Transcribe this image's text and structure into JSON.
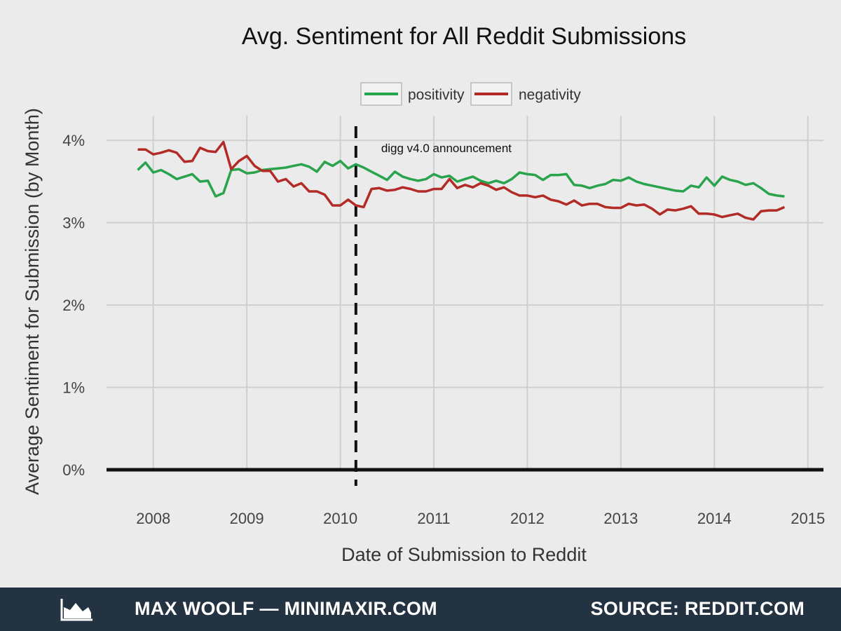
{
  "footer": {
    "credit": "MAX WOOLF — MINIMAXIR.COM",
    "source": "SOURCE: REDDIT.COM",
    "logo_icon": "area-chart-icon"
  },
  "chart_data": {
    "type": "line",
    "title": "Avg. Sentiment for All Reddit Submissions",
    "xlabel": "Date of Submission to Reddit",
    "ylabel": "Average Sentiment for Submission (by Month)",
    "x_ticks": [
      "2008",
      "2009",
      "2010",
      "2011",
      "2012",
      "2013",
      "2014",
      "2015"
    ],
    "y_ticks": [
      "0%",
      "1%",
      "2%",
      "3%",
      "4%"
    ],
    "ylim": [
      0,
      4.3
    ],
    "xlim": [
      "2007-07",
      "2015-03"
    ],
    "grid": true,
    "legend_position": "top",
    "annotation": {
      "label": "digg v4.0 announcement",
      "x": "2010-03",
      "style": "dashed-vertical-line"
    },
    "x": [
      "2007-11",
      "2007-12",
      "2008-01",
      "2008-02",
      "2008-03",
      "2008-04",
      "2008-05",
      "2008-06",
      "2008-07",
      "2008-08",
      "2008-09",
      "2008-10",
      "2008-11",
      "2008-12",
      "2009-01",
      "2009-02",
      "2009-03",
      "2009-04",
      "2009-05",
      "2009-06",
      "2009-07",
      "2009-08",
      "2009-09",
      "2009-10",
      "2009-11",
      "2009-12",
      "2010-01",
      "2010-02",
      "2010-03",
      "2010-04",
      "2010-05",
      "2010-06",
      "2010-07",
      "2010-08",
      "2010-09",
      "2010-10",
      "2010-11",
      "2010-12",
      "2011-01",
      "2011-02",
      "2011-03",
      "2011-04",
      "2011-05",
      "2011-06",
      "2011-07",
      "2011-08",
      "2011-09",
      "2011-10",
      "2011-11",
      "2011-12",
      "2012-01",
      "2012-02",
      "2012-03",
      "2012-04",
      "2012-05",
      "2012-06",
      "2012-07",
      "2012-08",
      "2012-09",
      "2012-10",
      "2012-11",
      "2012-12",
      "2013-01",
      "2013-02",
      "2013-03",
      "2013-04",
      "2013-05",
      "2013-06",
      "2013-07",
      "2013-08",
      "2013-09",
      "2013-10",
      "2013-11",
      "2013-12",
      "2014-01",
      "2014-02",
      "2014-03",
      "2014-04",
      "2014-05",
      "2014-06",
      "2014-07",
      "2014-08",
      "2014-09",
      "2014-10"
    ],
    "series": [
      {
        "name": "positivity",
        "color": "#2aa44c",
        "values": [
          3.64,
          3.73,
          3.61,
          3.64,
          3.59,
          3.53,
          3.56,
          3.59,
          3.5,
          3.51,
          3.32,
          3.36,
          3.64,
          3.65,
          3.6,
          3.61,
          3.64,
          3.65,
          3.66,
          3.67,
          3.69,
          3.71,
          3.68,
          3.62,
          3.74,
          3.69,
          3.75,
          3.66,
          3.71,
          3.67,
          3.62,
          3.57,
          3.52,
          3.62,
          3.56,
          3.53,
          3.51,
          3.53,
          3.59,
          3.55,
          3.57,
          3.5,
          3.53,
          3.56,
          3.51,
          3.48,
          3.51,
          3.48,
          3.53,
          3.61,
          3.59,
          3.58,
          3.52,
          3.58,
          3.58,
          3.59,
          3.46,
          3.45,
          3.42,
          3.45,
          3.47,
          3.52,
          3.51,
          3.55,
          3.5,
          3.47,
          3.45,
          3.43,
          3.41,
          3.39,
          3.38,
          3.45,
          3.43,
          3.55,
          3.45,
          3.56,
          3.52,
          3.5,
          3.46,
          3.48,
          3.42,
          3.35,
          3.33,
          3.32
        ]
      },
      {
        "name": "negativity",
        "color": "#b22b26",
        "values": [
          3.89,
          3.89,
          3.83,
          3.85,
          3.88,
          3.85,
          3.74,
          3.75,
          3.91,
          3.87,
          3.86,
          3.98,
          3.65,
          3.75,
          3.81,
          3.69,
          3.63,
          3.63,
          3.5,
          3.53,
          3.44,
          3.48,
          3.38,
          3.38,
          3.34,
          3.21,
          3.21,
          3.28,
          3.21,
          3.19,
          3.41,
          3.42,
          3.39,
          3.4,
          3.43,
          3.41,
          3.38,
          3.38,
          3.41,
          3.41,
          3.53,
          3.42,
          3.46,
          3.43,
          3.48,
          3.45,
          3.4,
          3.43,
          3.37,
          3.33,
          3.33,
          3.31,
          3.33,
          3.28,
          3.26,
          3.22,
          3.27,
          3.21,
          3.23,
          3.23,
          3.19,
          3.18,
          3.18,
          3.23,
          3.21,
          3.22,
          3.17,
          3.1,
          3.16,
          3.15,
          3.17,
          3.2,
          3.11,
          3.11,
          3.1,
          3.07,
          3.09,
          3.11,
          3.06,
          3.04,
          3.14,
          3.15,
          3.15,
          3.19
        ]
      }
    ]
  }
}
